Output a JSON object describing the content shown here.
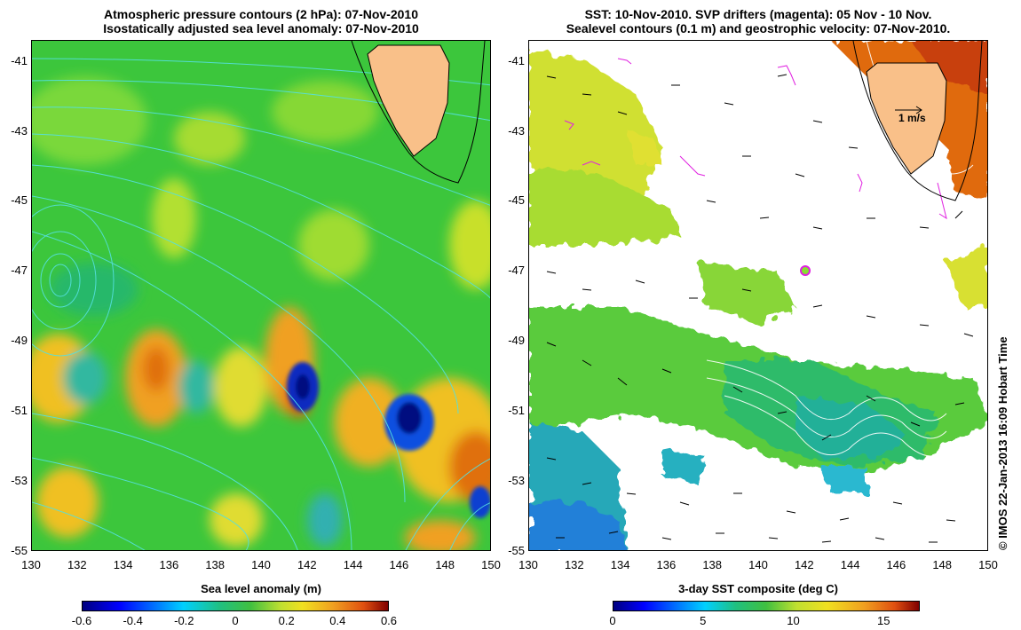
{
  "left": {
    "title_line1": "Atmospheric pressure contours (2 hPa): 07-Nov-2010",
    "title_line2": "Isostatically adjusted sea level anomaly: 07-Nov-2010",
    "colorbar_label": "Sea level anomaly (m)",
    "colorbar_ticks": [
      "-0.6",
      "-0.4",
      "-0.2",
      "0",
      "0.2",
      "0.4",
      "0.6"
    ],
    "colorbar_range": [
      -0.6,
      0.6
    ]
  },
  "right": {
    "title_line1": "SST: 10-Nov-2010. SVP drifters (magenta): 05 Nov - 10 Nov.",
    "title_line2": "Sealevel contours (0.1 m) and geostrophic velocity: 07-Nov-2010.",
    "colorbar_label": "3-day SST composite (deg C)",
    "colorbar_ticks": [
      "0",
      "5",
      "10",
      "15"
    ],
    "colorbar_range": [
      0,
      17
    ],
    "scale_label": "1 m/s"
  },
  "axes": {
    "lat_ticks": [
      "-41",
      "-43",
      "-45",
      "-47",
      "-49",
      "-51",
      "-53",
      "-55"
    ],
    "lon_ticks": [
      "130",
      "132",
      "134",
      "136",
      "138",
      "140",
      "142",
      "144",
      "146",
      "148",
      "150"
    ],
    "lat_range": [
      -55,
      -40.4
    ],
    "lon_range": [
      130,
      150
    ]
  },
  "credit": "© IMOS 22-Jan-2013 16:09 Hobart Time",
  "colors": {
    "land": "#f9c089",
    "contour": "#55e0e0",
    "drifter": "#e020e0",
    "background_green": "#3cc63c"
  }
}
